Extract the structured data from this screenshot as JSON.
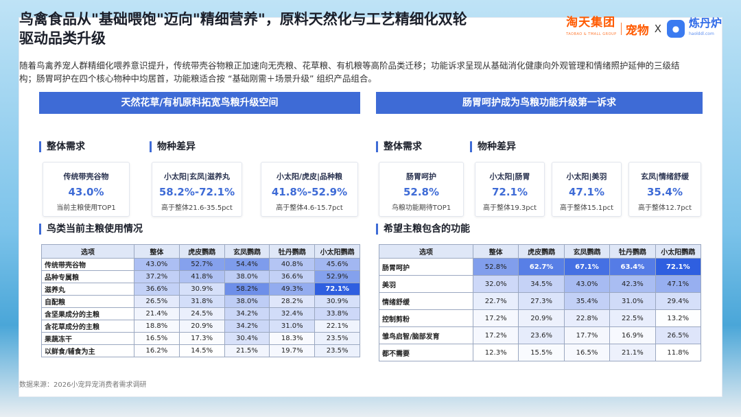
{
  "title_lines": [
    "鸟禽食品从\"基础喂饱\"迈向\"精细营养\"，原料天然化与工艺精细化双轮",
    "驱动品类升级"
  ],
  "logos": {
    "taotian": "淘天集团",
    "taotian_en": "TAOBAO & TMALL GROUP",
    "pet": "宠物",
    "x": "X",
    "liandanlu": "炼丹炉",
    "liandanlu_en": "haolddl.com"
  },
  "intro": "随着鸟禽养宠人群精细化喂养意识提升，传统带壳谷物粮正加速向无壳粮、花草粮、有机粮等高阶品类迁移；功能诉求呈现从基础消化健康向外观管理和情绪照护延伸的三级结构；肠胃呵护在四个核心物种中均居首，功能粮适合按 “基础刚需＋场景升级” 组织产品组合。",
  "left": {
    "banner": "天然花草/有机原料拓宽鸟粮升级空间",
    "sec_overall": "整体需求",
    "sec_species": "物种差异",
    "sec_table": "鸟类当前主粮使用情况",
    "kpis": [
      {
        "label": "传统带壳谷物",
        "value": "43.0%",
        "note": "当前主粮使用TOP1"
      },
      {
        "label": "小太阳|玄凤|滋养丸",
        "value": "58.2%-72.1%",
        "note": "高于整体21.6-35.5pct"
      },
      {
        "label": "小太阳/虎皮|品种粮",
        "value": "41.8%-52.9%",
        "note": "高于整体4.6-15.7pct"
      }
    ],
    "table": {
      "headers": [
        "选项",
        "整体",
        "虎皮鹦鹉",
        "玄凤鹦鹉",
        "牡丹鹦鹉",
        "小太阳鹦鹉"
      ],
      "rows": [
        {
          "label": "传统带壳谷物",
          "values": [
            "43.0%",
            "52.7%",
            "54.4%",
            "40.8%",
            "45.6%"
          ]
        },
        {
          "label": "品种专属粮",
          "values": [
            "37.2%",
            "41.8%",
            "38.0%",
            "36.6%",
            "52.9%"
          ]
        },
        {
          "label": "滋养丸",
          "values": [
            "36.6%",
            "30.9%",
            "58.2%",
            "49.3%",
            "72.1%"
          ]
        },
        {
          "label": "自配粮",
          "values": [
            "26.5%",
            "31.8%",
            "38.0%",
            "28.2%",
            "30.9%"
          ]
        },
        {
          "label": "含坚果成分的主粮",
          "values": [
            "21.4%",
            "24.5%",
            "34.2%",
            "32.4%",
            "33.8%"
          ]
        },
        {
          "label": "含花草成分的主粮",
          "values": [
            "18.8%",
            "20.9%",
            "34.2%",
            "31.0%",
            "22.1%"
          ]
        },
        {
          "label": "果蔬冻干",
          "values": [
            "16.5%",
            "17.3%",
            "30.4%",
            "18.3%",
            "23.5%"
          ]
        },
        {
          "label": "以鲜食/辅食为主",
          "values": [
            "16.2%",
            "14.5%",
            "21.5%",
            "19.7%",
            "23.5%"
          ]
        }
      ]
    }
  },
  "right": {
    "banner": "肠胃呵护成为鸟粮功能升级第一诉求",
    "sec_overall": "整体需求",
    "sec_species": "物种差异",
    "sec_table": "希望主粮包含的功能",
    "kpis": [
      {
        "label": "肠胃呵护",
        "value": "52.8%",
        "note": "鸟粮功能期待TOP1"
      },
      {
        "label": "小太阳|肠胃",
        "value": "72.1%",
        "note": "高于整体19.3pct"
      },
      {
        "label": "小太阳|美羽",
        "value": "47.1%",
        "note": "高于整体15.1pct"
      },
      {
        "label": "玄凤|情绪舒缓",
        "value": "35.4%",
        "note": "高于整体12.7pct"
      }
    ],
    "table": {
      "headers": [
        "选项",
        "整体",
        "虎皮鹦鹉",
        "玄凤鹦鹉",
        "牡丹鹦鹉",
        "小太阳鹦鹉"
      ],
      "rows": [
        {
          "label": "肠胃呵护",
          "values": [
            "52.8%",
            "62.7%",
            "67.1%",
            "63.4%",
            "72.1%"
          ]
        },
        {
          "label": "美羽",
          "values": [
            "32.0%",
            "34.5%",
            "43.0%",
            "42.3%",
            "47.1%"
          ]
        },
        {
          "label": "情绪舒缓",
          "values": [
            "22.7%",
            "27.3%",
            "35.4%",
            "31.0%",
            "29.4%"
          ]
        },
        {
          "label": "控制剪粉",
          "values": [
            "17.2%",
            "20.9%",
            "22.8%",
            "22.5%",
            "13.2%"
          ]
        },
        {
          "label": "雏鸟启智/脑部发育",
          "values": [
            "17.2%",
            "23.6%",
            "17.7%",
            "16.9%",
            "26.5%"
          ]
        },
        {
          "label": "都不需要",
          "values": [
            "12.3%",
            "15.5%",
            "16.5%",
            "21.1%",
            "11.8%"
          ]
        }
      ]
    }
  },
  "source": "数据来源：2026小宠异宠消费者需求调研",
  "colors": {
    "accent": "#3e6bd6",
    "heat_low": "#ffffff",
    "heat_high": "#2f5fe0"
  }
}
